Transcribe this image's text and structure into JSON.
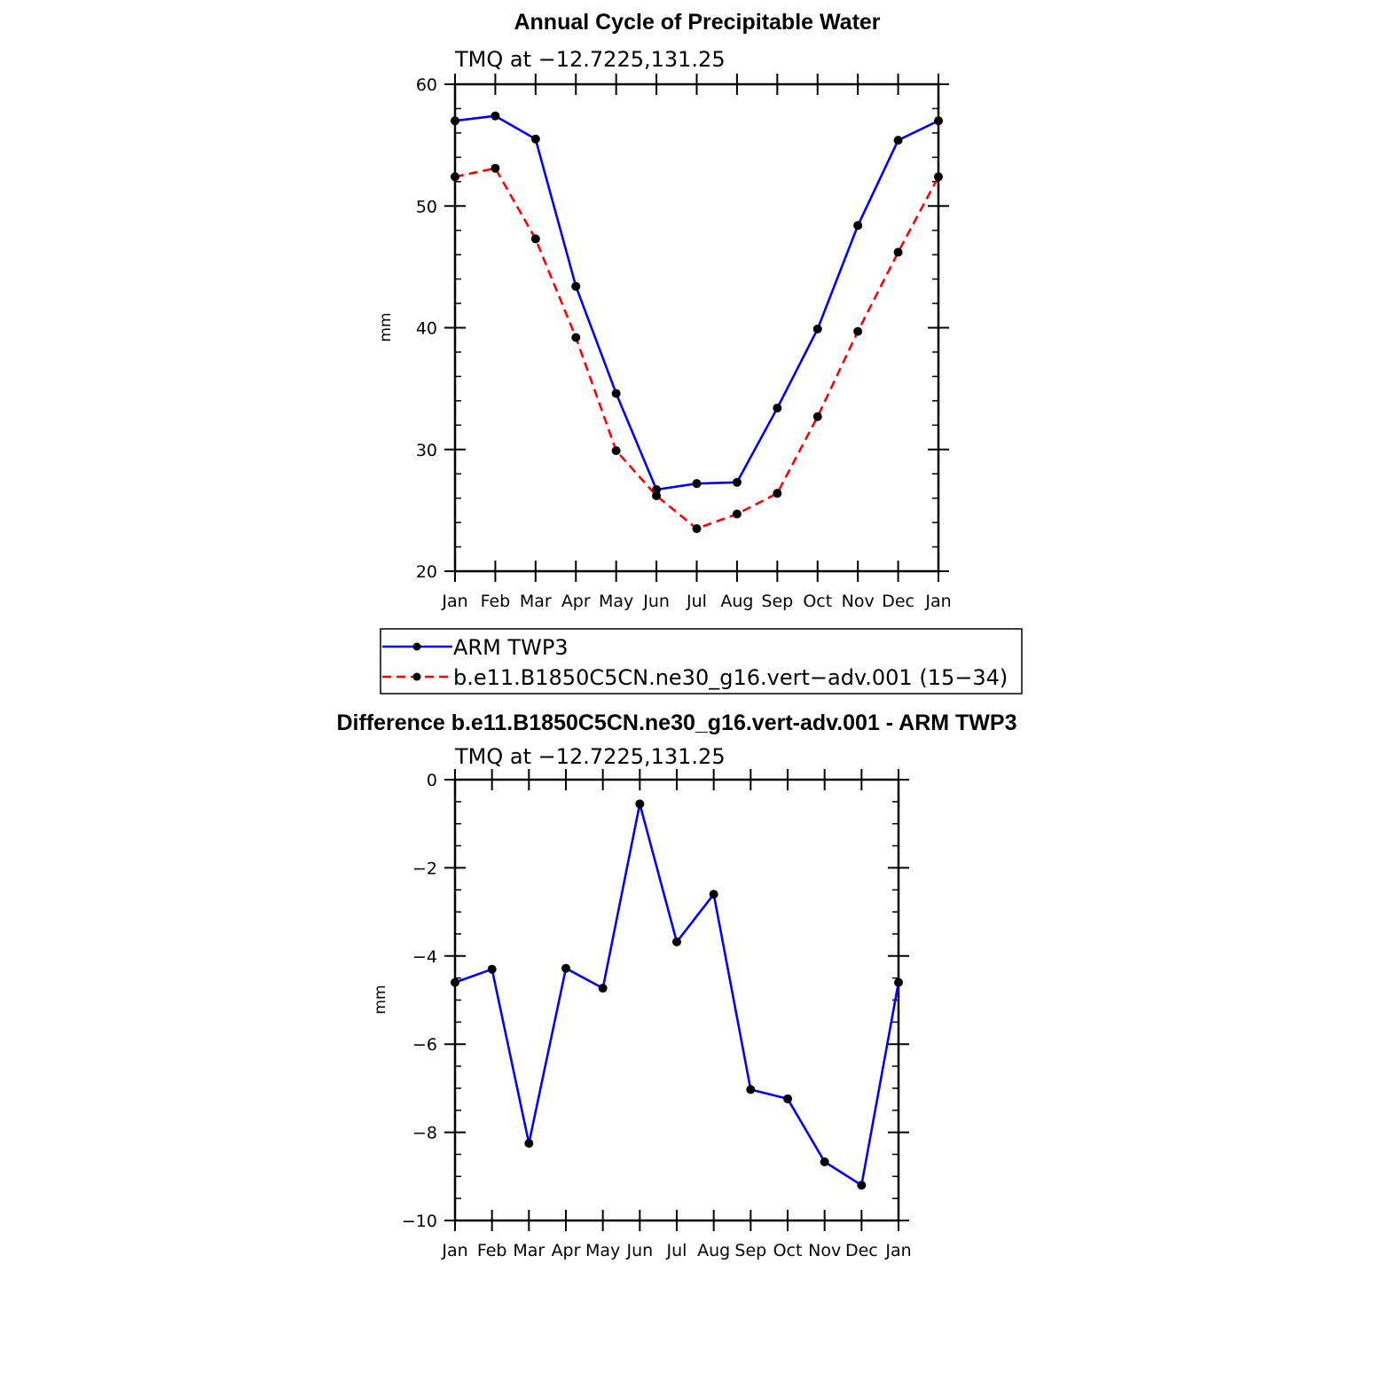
{
  "chart_data": [
    {
      "type": "line",
      "title": "Annual Cycle of Precipitable Water",
      "subtitle": "TMQ at −12.7225,131.25",
      "ylabel": "mm",
      "xlabel": "",
      "ylim": [
        20,
        60
      ],
      "yticks": [
        "20",
        "30",
        "40",
        "50",
        "60"
      ],
      "categories": [
        "Jan",
        "Feb",
        "Mar",
        "Apr",
        "May",
        "Jun",
        "Jul",
        "Aug",
        "Sep",
        "Oct",
        "Nov",
        "Dec",
        "Jan"
      ],
      "series": [
        {
          "name": "ARM TWP3",
          "color": "#0000ff",
          "dash": "solid",
          "values": [
            57.0,
            57.4,
            55.5,
            43.4,
            34.6,
            26.7,
            27.2,
            27.3,
            33.4,
            39.9,
            48.4,
            55.4,
            57.0
          ]
        },
        {
          "name": "b.e11.B1850C5CN.ne30_g16.vert−adv.001 (15−34)",
          "color": "#ff0000",
          "dash": "dashed",
          "values": [
            52.4,
            53.1,
            47.3,
            39.2,
            29.9,
            26.2,
            23.5,
            24.7,
            26.4,
            32.7,
            39.7,
            46.2,
            52.4
          ]
        }
      ],
      "legend_position": "below"
    },
    {
      "type": "line",
      "title": "Difference b.e11.B1850C5CN.ne30_g16.vert-adv.001 - ARM TWP3",
      "subtitle": "TMQ at −12.7225,131.25",
      "ylabel": "mm",
      "xlabel": "",
      "ylim": [
        -10,
        0
      ],
      "yticks": [
        "−10",
        "−8",
        "−6",
        "−4",
        "−2",
        "0"
      ],
      "categories": [
        "Jan",
        "Feb",
        "Mar",
        "Apr",
        "May",
        "Jun",
        "Jul",
        "Aug",
        "Sep",
        "Oct",
        "Nov",
        "Dec",
        "Jan"
      ],
      "series": [
        {
          "color": "#0000ff",
          "dash": "solid",
          "values": [
            -4.6,
            -4.3,
            -8.25,
            -4.28,
            -4.73,
            -0.55,
            -3.68,
            -2.6,
            -7.03,
            -7.24,
            -8.67,
            -9.2,
            -4.6
          ]
        }
      ]
    }
  ]
}
